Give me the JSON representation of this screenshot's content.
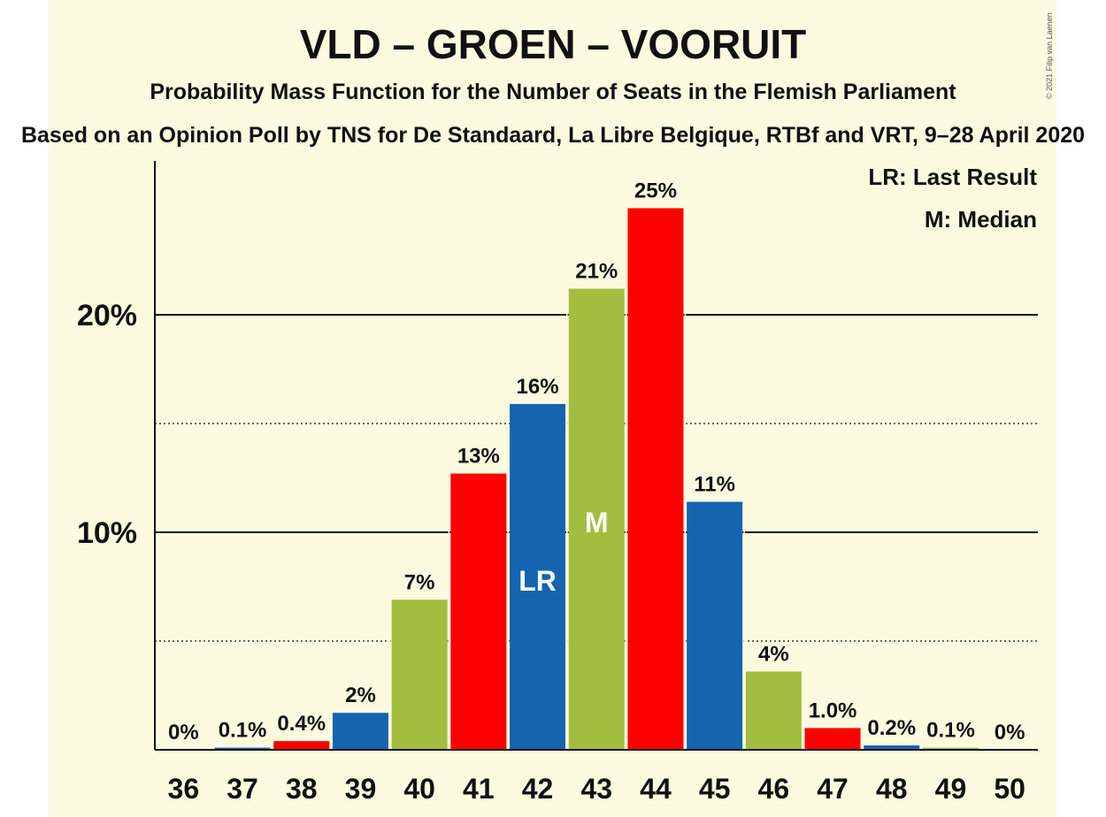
{
  "title": "VLD – GROEN – VOORUIT",
  "subtitle": "Probability Mass Function for the Number of Seats in the Flemish Parliament",
  "source": "Based on an Opinion Poll by TNS for De Standaard, La Libre Belgique, RTBf and VRT, 9–28 April 2020",
  "copyright": "© 2021 Filip van Laenen",
  "legend": {
    "last_result": "LR: Last Result",
    "median": "M: Median"
  },
  "colors": {
    "blue": "#1464b0",
    "green": "#a3bd3f",
    "red": "#ff0000",
    "background": "#fdfae0"
  },
  "chart_data": {
    "type": "bar",
    "categories": [
      "36",
      "37",
      "38",
      "39",
      "40",
      "41",
      "42",
      "43",
      "44",
      "45",
      "46",
      "47",
      "48",
      "49",
      "50"
    ],
    "values": [
      0,
      0.1,
      0.4,
      1.7,
      6.9,
      12.7,
      15.9,
      21.2,
      24.9,
      11.4,
      3.6,
      1.0,
      0.2,
      0.1,
      0
    ],
    "value_labels": [
      "0%",
      "0.1%",
      "0.4%",
      "2%",
      "7%",
      "13%",
      "16%",
      "21%",
      "25%",
      "11%",
      "4%",
      "1.0%",
      "0.2%",
      "0.1%",
      "0%"
    ],
    "bar_colors": [
      "#ff0000",
      "#1464b0",
      "#ff0000",
      "#1464b0",
      "#a3bd3f",
      "#ff0000",
      "#1464b0",
      "#a3bd3f",
      "#ff0000",
      "#1464b0",
      "#a3bd3f",
      "#ff0000",
      "#1464b0",
      "#a3bd3f",
      "#ff0000"
    ],
    "bar_marks": {
      "42": "LR",
      "43": "M"
    },
    "y_ticks": [
      {
        "value": 10,
        "label": "10%"
      },
      {
        "value": 20,
        "label": "20%"
      }
    ],
    "y_minor_gridlines": [
      5,
      15
    ],
    "ylim": [
      0,
      27
    ],
    "legend_position": "top-right"
  }
}
